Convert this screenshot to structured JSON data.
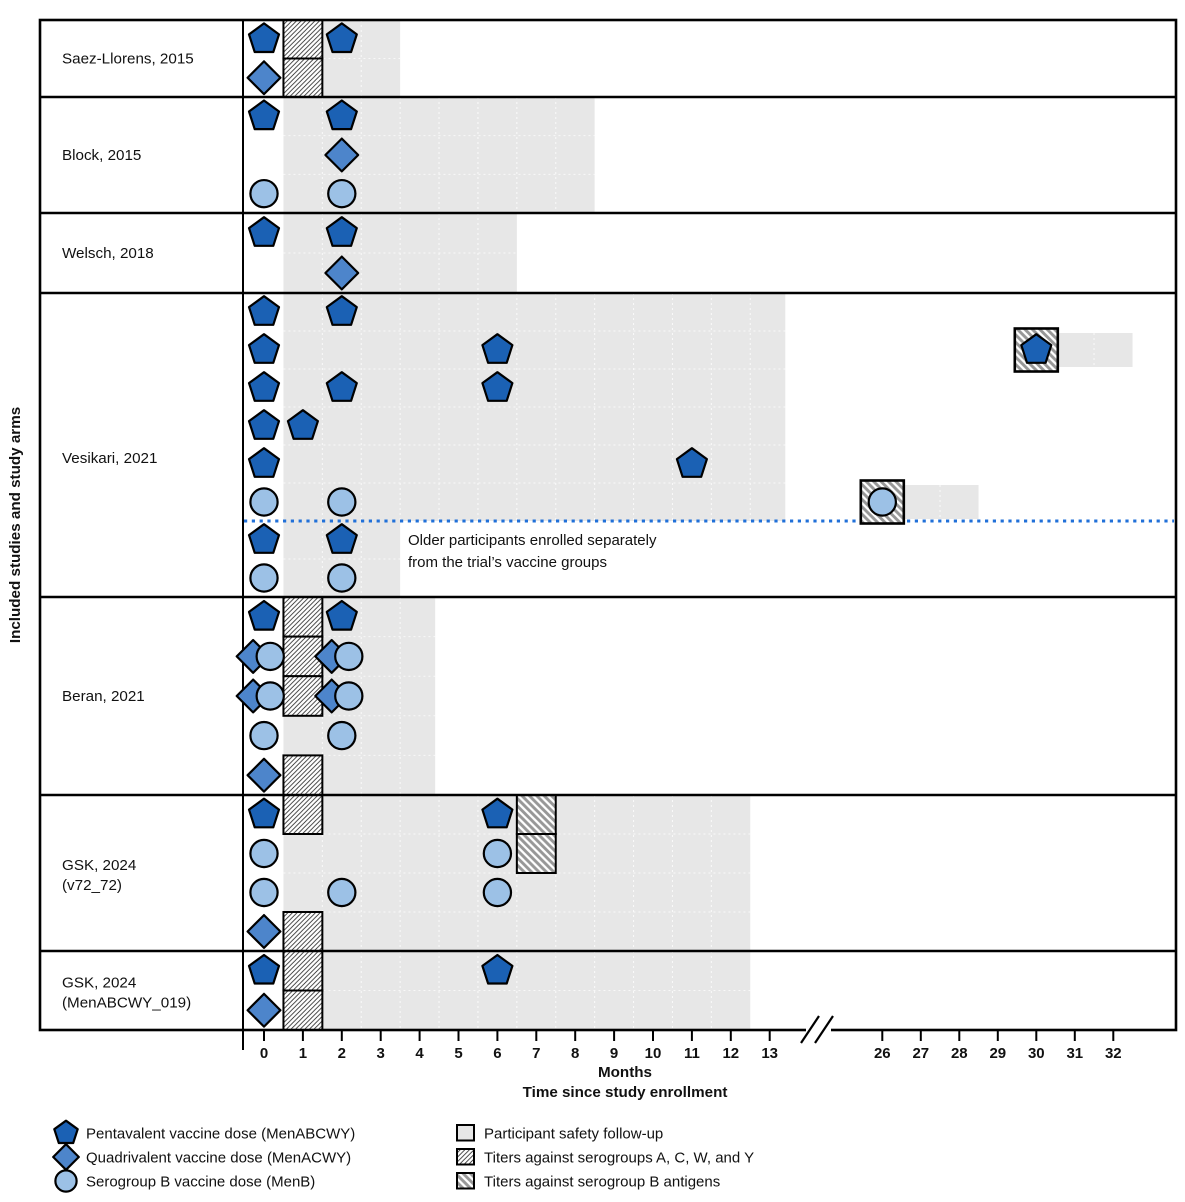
{
  "figure": {
    "y_axis_label": "Included studies and study arms",
    "x_axis": {
      "title1": "Months",
      "title2": "Time since study enrollment",
      "ticks_pre_break": [
        0,
        1,
        2,
        3,
        4,
        5,
        6,
        7,
        8,
        9,
        10,
        11,
        12,
        13
      ],
      "ticks_post_break": [
        26,
        27,
        28,
        29,
        30,
        31,
        32
      ]
    },
    "annotation": {
      "line1": "Older participants enrolled separately",
      "line2": "from the trial’s vaccine groups"
    },
    "legend_left": [
      {
        "shape": "pentagon",
        "label": "Pentavalent vaccine dose (MenABCWY)"
      },
      {
        "shape": "diamond",
        "label": "Quadrivalent vaccine dose (MenACWY)"
      },
      {
        "shape": "circle",
        "label": "Serogroup B vaccine dose (MenB)"
      }
    ],
    "legend_right": [
      {
        "swatch": "safety",
        "label": "Participant safety follow-up"
      },
      {
        "swatch": "hatch_acwy",
        "label": "Titers against serogroups A, C, W, and Y"
      },
      {
        "swatch": "hatch_b",
        "label": "Titers against serogroup B antigens"
      }
    ],
    "colors": {
      "pentagon": "#1b61b4",
      "diamond": "#4d85cb",
      "circle": "#9cc1e6",
      "safety_gray": "#e7e7e7",
      "dashed_line": "#2170d8",
      "outline": "#000000"
    }
  },
  "chart_data": {
    "type": "scatter",
    "x_unit": "months since study enrollment",
    "x_break": {
      "before": 13.4,
      "resume": 26
    },
    "panels": [
      {
        "label": "Saez-Llorens, 2015",
        "arms": [
          {
            "markers": [
              {
                "shape": "pentagon",
                "m": 0
              },
              {
                "shape": "pentagon",
                "m": 2
              }
            ],
            "titer_acwy": [
              [
                0.5,
                1.5
              ]
            ]
          },
          {
            "markers": [
              {
                "shape": "diamond",
                "m": 0
              }
            ],
            "titer_acwy": [
              [
                0.5,
                1.5
              ]
            ]
          }
        ],
        "safety": [
          {
            "from": 0.5,
            "to": 3.5,
            "arm_from": 0,
            "arm_to": 1
          }
        ]
      },
      {
        "label": "Block, 2015",
        "arms": [
          {
            "markers": [
              {
                "shape": "pentagon",
                "m": 0
              },
              {
                "shape": "pentagon",
                "m": 2
              }
            ]
          },
          {
            "markers": [
              {
                "shape": "diamond",
                "m": 2
              }
            ]
          },
          {
            "markers": [
              {
                "shape": "circle",
                "m": 0
              },
              {
                "shape": "circle",
                "m": 2
              }
            ]
          }
        ],
        "safety": [
          {
            "from": 0.5,
            "to": 8.5,
            "arm_from": 0,
            "arm_to": 2
          }
        ]
      },
      {
        "label": "Welsch, 2018",
        "arms": [
          {
            "markers": [
              {
                "shape": "pentagon",
                "m": 0
              },
              {
                "shape": "pentagon",
                "m": 2
              }
            ]
          },
          {
            "markers": [
              {
                "shape": "diamond",
                "m": 2
              }
            ]
          }
        ],
        "safety": [
          {
            "from": 0.5,
            "to": 6.5,
            "arm_from": 0,
            "arm_to": 1
          }
        ]
      },
      {
        "label": "Vesikari, 2021",
        "arms": [
          {
            "markers": [
              {
                "shape": "pentagon",
                "m": 0
              },
              {
                "shape": "pentagon",
                "m": 2
              }
            ]
          },
          {
            "markers": [
              {
                "shape": "pentagon",
                "m": 0
              },
              {
                "shape": "pentagon",
                "m": 6
              },
              {
                "shape": "pentagon",
                "m": 30,
                "boxed": "hatch_b"
              }
            ],
            "mini_safety": [
              [
                30.5,
                32.5
              ]
            ]
          },
          {
            "markers": [
              {
                "shape": "pentagon",
                "m": 0
              },
              {
                "shape": "pentagon",
                "m": 2
              },
              {
                "shape": "pentagon",
                "m": 6
              }
            ]
          },
          {
            "markers": [
              {
                "shape": "pentagon",
                "m": 0
              },
              {
                "shape": "pentagon",
                "m": 1
              }
            ]
          },
          {
            "markers": [
              {
                "shape": "pentagon",
                "m": 0
              },
              {
                "shape": "pentagon",
                "m": 11
              }
            ]
          },
          {
            "markers": [
              {
                "shape": "circle",
                "m": 0
              },
              {
                "shape": "circle",
                "m": 2
              },
              {
                "shape": "circle",
                "m": 26,
                "boxed": "hatch_b"
              }
            ],
            "mini_safety": [
              [
                26.5,
                28.5
              ]
            ]
          },
          {
            "markers": [
              {
                "shape": "pentagon",
                "m": 0
              },
              {
                "shape": "pentagon",
                "m": 2
              }
            ]
          },
          {
            "markers": [
              {
                "shape": "circle",
                "m": 0
              },
              {
                "shape": "circle",
                "m": 2
              }
            ]
          }
        ],
        "safety": [
          {
            "from": 0.5,
            "to": 13.4,
            "arm_from": 0,
            "arm_to": 5
          },
          {
            "from": 0.5,
            "to": 3.5,
            "arm_from": 6,
            "arm_to": 7
          }
        ],
        "dashed_after_arm": 5,
        "has_annotation": true
      },
      {
        "label": "Beran, 2021",
        "arms": [
          {
            "markers": [
              {
                "shape": "pentagon",
                "m": 0
              },
              {
                "shape": "pentagon",
                "m": 2
              }
            ],
            "titer_acwy": [
              [
                0.5,
                1.5
              ]
            ]
          },
          {
            "markers": [
              {
                "shape": "diamond",
                "m": -0.28
              },
              {
                "shape": "circle",
                "m": 0.16
              },
              {
                "shape": "diamond",
                "m": 1.74
              },
              {
                "shape": "circle",
                "m": 2.18
              }
            ],
            "titer_acwy": [
              [
                0.5,
                1.5
              ]
            ]
          },
          {
            "markers": [
              {
                "shape": "diamond",
                "m": -0.28
              },
              {
                "shape": "circle",
                "m": 0.16
              },
              {
                "shape": "diamond",
                "m": 1.74
              },
              {
                "shape": "circle",
                "m": 2.18
              }
            ],
            "titer_acwy": [
              [
                0.5,
                1.5
              ]
            ]
          },
          {
            "markers": [
              {
                "shape": "circle",
                "m": 0
              },
              {
                "shape": "circle",
                "m": 2
              }
            ]
          },
          {
            "markers": [
              {
                "shape": "diamond",
                "m": 0
              }
            ],
            "titer_acwy": [
              [
                0.5,
                1.5
              ]
            ]
          }
        ],
        "safety": [
          {
            "from": 0.5,
            "to": 4.4,
            "arm_from": 0,
            "arm_to": 4
          }
        ]
      },
      {
        "label": "GSK, 2024",
        "label2": "(v72_72)",
        "arms": [
          {
            "markers": [
              {
                "shape": "pentagon",
                "m": 0
              },
              {
                "shape": "pentagon",
                "m": 6
              }
            ],
            "titer_acwy": [
              [
                0.5,
                1.5
              ]
            ],
            "titer_b": [
              [
                6.5,
                7.5
              ]
            ]
          },
          {
            "markers": [
              {
                "shape": "circle",
                "m": 0
              },
              {
                "shape": "circle",
                "m": 6
              }
            ],
            "titer_b": [
              [
                6.5,
                7.5
              ]
            ]
          },
          {
            "markers": [
              {
                "shape": "circle",
                "m": 0
              },
              {
                "shape": "circle",
                "m": 2
              },
              {
                "shape": "circle",
                "m": 6
              }
            ]
          },
          {
            "markers": [
              {
                "shape": "diamond",
                "m": 0
              }
            ],
            "titer_acwy": [
              [
                0.5,
                1.5
              ]
            ]
          }
        ],
        "safety": [
          {
            "from": 0.5,
            "to": 12.5,
            "arm_from": 0,
            "arm_to": 3
          }
        ]
      },
      {
        "label": "GSK, 2024",
        "label2": "(MenABCWY_019)",
        "arms": [
          {
            "markers": [
              {
                "shape": "pentagon",
                "m": 0
              },
              {
                "shape": "pentagon",
                "m": 6
              }
            ],
            "titer_acwy": [
              [
                0.5,
                1.5
              ]
            ]
          },
          {
            "markers": [
              {
                "shape": "diamond",
                "m": 0
              }
            ],
            "titer_acwy": [
              [
                0.5,
                1.5
              ]
            ]
          }
        ],
        "safety": [
          {
            "from": 0.5,
            "to": 12.5,
            "arm_from": 0,
            "arm_to": 1
          }
        ]
      }
    ]
  }
}
